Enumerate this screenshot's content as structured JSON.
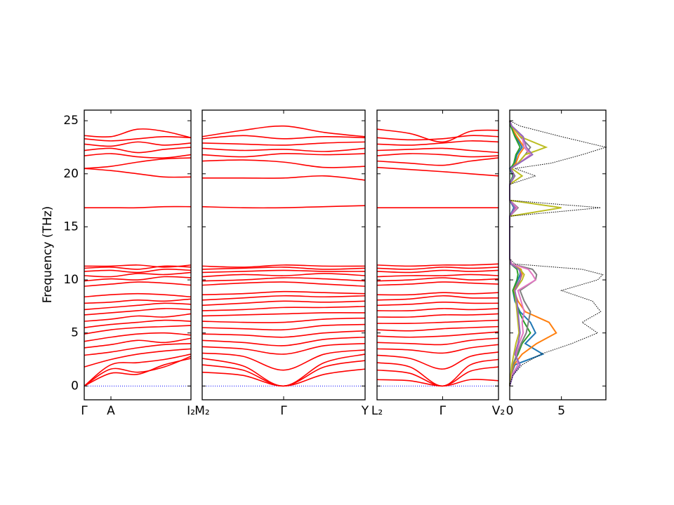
{
  "chart_data": [
    {
      "type": "line",
      "ylabel": "Frequency (THz)",
      "color": "#ff0000",
      "hline": 0,
      "hline_color": "#0000ff",
      "xlim": [
        0,
        1
      ],
      "ylim": [
        -1.3,
        26
      ],
      "yticks": [
        0,
        5,
        10,
        15,
        20,
        25
      ],
      "xticks": [
        {
          "value": 0,
          "label": "Γ"
        },
        {
          "value": 0.25,
          "label": "A"
        },
        {
          "value": 1,
          "label": "I₂"
        }
      ],
      "x": [
        0,
        0.25,
        0.5,
        0.75,
        1
      ],
      "bands": [
        [
          0,
          1.2,
          1.1,
          2.0,
          2.6
        ],
        [
          0,
          2.0,
          2.2,
          2.5,
          3.0
        ],
        [
          0,
          1.6,
          1.3,
          1.8,
          2.8
        ],
        [
          1.8,
          2.5,
          3.0,
          3.3,
          3.5
        ],
        [
          2.9,
          3.2,
          3.6,
          3.9,
          4.0
        ],
        [
          3.6,
          3.9,
          4.3,
          4.1,
          4.5
        ],
        [
          4.2,
          4.6,
          4.9,
          5.0,
          4.8
        ],
        [
          4.9,
          5.3,
          5.5,
          5.6,
          5.7
        ],
        [
          5.5,
          5.8,
          6.0,
          6.2,
          6.1
        ],
        [
          6.1,
          6.3,
          6.6,
          6.5,
          6.8
        ],
        [
          6.7,
          6.9,
          7.1,
          7.3,
          7.2
        ],
        [
          7.2,
          7.4,
          7.6,
          7.8,
          7.7
        ],
        [
          7.8,
          7.9,
          8.1,
          8.0,
          8.2
        ],
        [
          8.4,
          8.6,
          8.7,
          8.6,
          8.4
        ],
        [
          9.4,
          9.6,
          9.8,
          9.7,
          9.5
        ],
        [
          9.9,
          10.1,
          10.0,
          10.3,
          10.2
        ],
        [
          10.4,
          10.3,
          10.6,
          10.5,
          10.7
        ],
        [
          10.8,
          10.9,
          10.7,
          11.0,
          10.9
        ],
        [
          11.1,
          11.2,
          11.0,
          11.3,
          11.2
        ],
        [
          11.3,
          11.3,
          11.4,
          11.2,
          11.4
        ],
        [
          16.8,
          16.8,
          16.8,
          16.9,
          16.9
        ],
        [
          20.5,
          20.3,
          20.0,
          19.7,
          19.7
        ],
        [
          20.5,
          20.7,
          21.1,
          21.4,
          21.5
        ],
        [
          21.7,
          21.9,
          21.6,
          21.5,
          21.8
        ],
        [
          22.2,
          22.4,
          22.0,
          22.3,
          22.5
        ],
        [
          22.8,
          22.6,
          23.0,
          22.7,
          22.9
        ],
        [
          23.3,
          23.1,
          23.3,
          23.5,
          23.4
        ],
        [
          23.6,
          23.5,
          24.2,
          24.0,
          23.4
        ]
      ]
    },
    {
      "type": "line",
      "color": "#ff0000",
      "hline": 0,
      "hline_color": "#0000ff",
      "xlim": [
        0,
        1
      ],
      "ylim": [
        -1.3,
        26
      ],
      "yticks": [
        0,
        5,
        10,
        15,
        20,
        25
      ],
      "xticks": [
        {
          "value": 0,
          "label": "M₂"
        },
        {
          "value": 0.5,
          "label": "Γ"
        },
        {
          "value": 1,
          "label": "Y"
        }
      ],
      "x": [
        0,
        0.25,
        0.5,
        0.75,
        1
      ],
      "bands": [
        [
          1.3,
          1.0,
          0,
          1.1,
          1.6
        ],
        [
          2.0,
          1.5,
          0,
          1.8,
          2.4
        ],
        [
          2.6,
          1.9,
          0,
          2.2,
          3.0
        ],
        [
          3.1,
          2.8,
          1.5,
          3.0,
          3.4
        ],
        [
          3.7,
          3.5,
          3.0,
          3.8,
          4.0
        ],
        [
          4.3,
          4.1,
          3.8,
          4.4,
          4.6
        ],
        [
          4.9,
          4.8,
          4.6,
          5.0,
          5.2
        ],
        [
          5.5,
          5.4,
          5.3,
          5.7,
          5.8
        ],
        [
          6.1,
          6.0,
          6.0,
          6.3,
          6.4
        ],
        [
          6.6,
          6.7,
          6.8,
          6.9,
          6.9
        ],
        [
          7.1,
          7.2,
          7.4,
          7.4,
          7.5
        ],
        [
          7.6,
          7.8,
          8.0,
          7.9,
          8.0
        ],
        [
          8.1,
          8.3,
          8.5,
          8.4,
          8.5
        ],
        [
          8.6,
          8.7,
          8.9,
          8.8,
          8.7
        ],
        [
          9.5,
          9.7,
          9.8,
          9.6,
          9.4
        ],
        [
          9.9,
          10.0,
          10.2,
          10.1,
          9.9
        ],
        [
          10.3,
          10.5,
          10.4,
          10.6,
          10.4
        ],
        [
          10.7,
          10.8,
          10.9,
          10.8,
          10.8
        ],
        [
          11.0,
          11.1,
          11.2,
          11.0,
          11.1
        ],
        [
          11.3,
          11.2,
          11.4,
          11.3,
          11.3
        ],
        [
          16.9,
          16.8,
          16.8,
          16.9,
          17.0
        ],
        [
          19.6,
          19.6,
          19.6,
          19.8,
          19.4
        ],
        [
          21.2,
          21.3,
          21.1,
          20.6,
          20.7
        ],
        [
          21.8,
          21.6,
          21.9,
          21.8,
          21.9
        ],
        [
          22.4,
          22.2,
          22.3,
          22.1,
          22.4
        ],
        [
          22.9,
          22.8,
          22.7,
          22.9,
          23.0
        ],
        [
          23.3,
          23.6,
          23.3,
          23.5,
          23.4
        ],
        [
          23.5,
          24.1,
          24.5,
          23.9,
          23.5
        ]
      ]
    },
    {
      "type": "line",
      "color": "#ff0000",
      "hline": 0,
      "hline_color": "#0000ff",
      "xlim": [
        0,
        1
      ],
      "ylim": [
        -1.3,
        26
      ],
      "yticks": [
        0,
        5,
        10,
        15,
        20,
        25
      ],
      "xticks": [
        {
          "value": 0,
          "label": "L₂"
        },
        {
          "value": 0.54,
          "label": "Γ"
        },
        {
          "value": 1,
          "label": "V₂"
        }
      ],
      "x": [
        0,
        0.27,
        0.54,
        0.77,
        1
      ],
      "bands": [
        [
          0.6,
          0.5,
          0,
          0.6,
          0.5
        ],
        [
          1.5,
          1.2,
          0,
          1.4,
          1.8
        ],
        [
          2.2,
          1.8,
          0,
          2.0,
          2.5
        ],
        [
          2.9,
          2.6,
          1.6,
          2.8,
          3.2
        ],
        [
          3.5,
          3.4,
          3.1,
          3.6,
          3.9
        ],
        [
          4.1,
          4.0,
          3.9,
          4.3,
          4.5
        ],
        [
          4.7,
          4.6,
          4.7,
          4.9,
          5.1
        ],
        [
          5.3,
          5.2,
          5.4,
          5.5,
          5.6
        ],
        [
          5.9,
          5.9,
          6.0,
          6.1,
          6.2
        ],
        [
          6.5,
          6.5,
          6.7,
          6.7,
          6.8
        ],
        [
          7.1,
          7.1,
          7.3,
          7.2,
          7.3
        ],
        [
          7.6,
          7.7,
          7.9,
          7.8,
          7.8
        ],
        [
          8.1,
          8.2,
          8.5,
          8.3,
          8.3
        ],
        [
          8.6,
          8.6,
          8.8,
          8.7,
          8.8
        ],
        [
          9.5,
          9.6,
          9.8,
          9.7,
          9.6
        ],
        [
          9.9,
          10.0,
          10.2,
          10.0,
          10.1
        ],
        [
          10.3,
          10.4,
          10.4,
          10.5,
          10.4
        ],
        [
          10.8,
          10.7,
          10.9,
          10.8,
          10.9
        ],
        [
          11.1,
          11.0,
          11.2,
          11.1,
          11.2
        ],
        [
          11.4,
          11.3,
          11.4,
          11.4,
          11.5
        ],
        [
          16.8,
          16.8,
          16.8,
          16.8,
          16.8
        ],
        [
          20.6,
          20.4,
          20.2,
          20.0,
          19.8
        ],
        [
          21.2,
          21.0,
          20.8,
          21.2,
          21.5
        ],
        [
          21.7,
          21.9,
          21.8,
          21.6,
          21.7
        ],
        [
          22.2,
          22.3,
          22.4,
          22.2,
          22.0
        ],
        [
          22.8,
          22.7,
          22.9,
          23.1,
          23.0
        ],
        [
          23.4,
          23.2,
          23.3,
          23.6,
          23.5
        ],
        [
          24.2,
          23.8,
          23.0,
          24.0,
          24.1
        ]
      ]
    },
    {
      "type": "density",
      "xlim": [
        0,
        9.3
      ],
      "ylim": [
        -1.3,
        26
      ],
      "yticks": [
        0,
        5,
        10,
        15,
        20,
        25
      ],
      "xticks": [
        0,
        5
      ],
      "frequencies": [
        0,
        1,
        2,
        3,
        4,
        5,
        6,
        7,
        8,
        9,
        10,
        10.5,
        11,
        11.5,
        12,
        16,
        16.8,
        17.5,
        19,
        19.8,
        20.5,
        21,
        21.8,
        22.5,
        23.5,
        24.5,
        25
      ],
      "total": {
        "color": "#000000",
        "values": [
          0,
          0.3,
          1.2,
          3,
          6,
          8.5,
          7,
          8.8,
          8,
          5,
          8.5,
          9,
          7,
          0.5,
          0,
          0,
          8.8,
          0,
          0,
          2.5,
          0.5,
          4,
          7,
          9.3,
          5,
          1,
          0
        ]
      },
      "series": [
        {
          "color": "#1f77b4",
          "values": [
            0,
            0.1,
            0.5,
            3.2,
            1.5,
            2.5,
            2.0,
            1,
            0.5,
            0.3,
            0.8,
            1,
            1,
            0.1,
            0,
            0,
            0.4,
            0,
            0,
            0.3,
            0,
            0.5,
            0.7,
            1.2,
            0.6,
            0.1,
            0
          ]
        },
        {
          "color": "#ff7f0e",
          "values": [
            0,
            0.1,
            0.4,
            1.2,
            2.6,
            4.5,
            3.8,
            1.5,
            0.8,
            0.4,
            1.0,
            1.2,
            1.1,
            0.1,
            0,
            0,
            0.6,
            0,
            0,
            0.4,
            0.1,
            0.6,
            0.9,
            1.4,
            0.7,
            0.1,
            0
          ]
        },
        {
          "color": "#2ca02c",
          "values": [
            0,
            0.1,
            0.3,
            0.8,
            1.2,
            2.0,
            1.4,
            0.9,
            0.6,
            0.3,
            0.7,
            0.8,
            0.7,
            0.1,
            0,
            0,
            0.5,
            0,
            0,
            0.3,
            0.1,
            0.4,
            0.6,
            1.0,
            0.5,
            0.1,
            0
          ]
        },
        {
          "color": "#7f7f7f",
          "values": [
            0,
            0.1,
            0.3,
            0.7,
            1.1,
            1.6,
            1.8,
            2.0,
            1.4,
            1.0,
            2.5,
            2.6,
            2.2,
            0.2,
            0,
            0,
            0.8,
            0,
            0,
            0.5,
            0.1,
            0.8,
            1.5,
            2.0,
            1.0,
            0.2,
            0
          ]
        },
        {
          "color": "#e377c2",
          "values": [
            0,
            0.2,
            0.8,
            0.6,
            0.9,
            1.3,
            1.2,
            1.4,
            1.1,
            0.8,
            2.5,
            2.2,
            1.8,
            0.2,
            0,
            0,
            0.7,
            0,
            0,
            0.4,
            0.1,
            0.9,
            2.0,
            1.4,
            1.2,
            0.2,
            0
          ]
        },
        {
          "color": "#bcbd22",
          "values": [
            0,
            0.1,
            0.2,
            0.4,
            0.6,
            0.9,
            0.8,
            0.7,
            0.6,
            0.5,
            1.2,
            1.4,
            1.0,
            0.1,
            0,
            0,
            5.0,
            0,
            0,
            1.2,
            0.2,
            0.8,
            1.5,
            3.5,
            1.0,
            0.2,
            0
          ]
        },
        {
          "color": "#9467bd",
          "values": [
            0,
            0.3,
            1.0,
            0.5,
            0.8,
            1.0,
            0.9,
            0.8,
            0.7,
            0.5,
            1.0,
            1.1,
            0.9,
            0.1,
            0,
            0,
            0.5,
            0,
            0,
            0.4,
            0.1,
            0.9,
            2.2,
            1.6,
            1.3,
            0.2,
            0
          ]
        }
      ]
    }
  ]
}
